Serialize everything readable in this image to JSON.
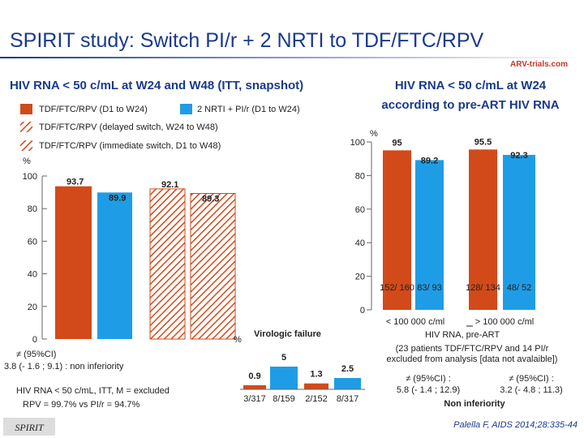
{
  "title": "SPIRIT study: Switch PI/r + 2 NRTI to TDF/FTC/RPV",
  "logo": "ARV-trials.com",
  "footer": "SPIRIT",
  "citation": "Palella F, AIDS 2014;28:335-44",
  "chart_data": [
    {
      "type": "bar",
      "title": "HIV RNA < 50 c/mL at W24 and W48 (ITT, snapshot)",
      "y_label": "%",
      "ylim": [
        0,
        100
      ],
      "yticks": [
        0,
        20,
        40,
        60,
        80,
        100
      ],
      "categories": [
        null,
        null
      ],
      "series": [
        {
          "name": "TDF/FTC/RPV (D1 to W24)",
          "color": "#d24a1a",
          "hatch": false,
          "values": [
            93.7,
            null
          ]
        },
        {
          "name": "2 NRTI + PI/r (D1 to W24)",
          "color": "#1e9de6",
          "hatch": false,
          "values": [
            89.9,
            null
          ]
        },
        {
          "name": "TDF/FTC/RPV (delayed switch, W24 to W48)",
          "color": "#d24a1a",
          "hatch": true,
          "values": [
            null,
            92.1
          ]
        },
        {
          "name": "TDF/FTC/RPV (immediate switch, D1 to W48)",
          "color": "#d24a1a",
          "hatch": true,
          "values": [
            null,
            89.3
          ]
        }
      ],
      "annotations": [
        "≠ (95%CI)",
        "3.8 (- 1.6 ; 9.1) : non inferiority",
        "HIV RNA < 50 c/mL, ITT, M = excluded",
        "RPV = 99.7% vs PI/r = 94.7%"
      ]
    },
    {
      "type": "bar",
      "title": "Virologic failure",
      "y_label": "%",
      "categories": [
        null,
        null
      ],
      "series": [
        {
          "color": "#d24a1a",
          "values": [
            0.9,
            1.3
          ],
          "counts": [
            "3/317",
            "2/152"
          ]
        },
        {
          "color": "#1e9de6",
          "values": [
            5,
            2.5
          ],
          "counts": [
            "8/159",
            "8/317"
          ]
        }
      ]
    },
    {
      "type": "bar",
      "title": [
        "HIV RNA < 50 c/mL at W24",
        "according to pre-ART HIV RNA"
      ],
      "y_label": "%",
      "x_label": "HIV RNA, pre-ART",
      "ylim": [
        0,
        100
      ],
      "yticks": [
        0,
        20,
        40,
        60,
        80,
        100
      ],
      "categories": [
        "< 100 000 c/ml",
        "> 100 000 c/ml"
      ],
      "series": [
        {
          "color": "#d24a1a",
          "values": [
            95,
            95.5
          ],
          "counts": [
            "152/ 160",
            "128/ 134"
          ]
        },
        {
          "color": "#1e9de6",
          "values": [
            89.2,
            92.3
          ],
          "counts": [
            "83/ 93",
            "48/ 52"
          ]
        }
      ],
      "notes": [
        "(23 patients TDF/FTC/RPV and 14 PI/r",
        "excluded from analysis [data not avalaible])",
        "≠ (95%CI) :",
        "≠ (95%CI) :",
        "5.8 (- 1.4 ; 12.9)",
        "3.2 (- 4.8 ; 11.3)",
        "Non inferiority"
      ]
    }
  ]
}
